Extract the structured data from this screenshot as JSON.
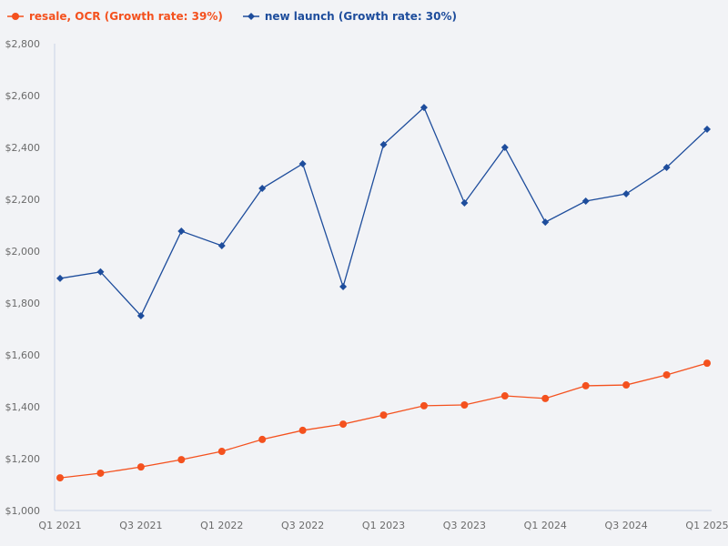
{
  "legend": {
    "series_0": "resale, OCR (Growth rate: 39%)",
    "series_1": "new launch (Growth rate: 30%)"
  },
  "colors": {
    "resale": "#f4511e",
    "new_launch": "#1e4d9c",
    "axis": "#c9d3e6",
    "tick_text": "#6b6b6b",
    "background": "#f2f3f6"
  },
  "chart_data": {
    "type": "line",
    "title": "",
    "xlabel": "",
    "ylabel": "",
    "ylim": [
      1000,
      2800
    ],
    "yticks": [
      "$1,000",
      "$1,200",
      "$1,400",
      "$1,600",
      "$1,800",
      "$2,000",
      "$2,200",
      "$2,400",
      "$2,600",
      "$2,800"
    ],
    "ytick_values": [
      1000,
      1200,
      1400,
      1600,
      1800,
      2000,
      2200,
      2400,
      2600,
      2800
    ],
    "x": [
      "Q1 2021",
      "Q2 2021",
      "Q3 2021",
      "Q4 2021",
      "Q1 2022",
      "Q2 2022",
      "Q3 2022",
      "Q4 2022",
      "Q1 2023",
      "Q2 2023",
      "Q3 2023",
      "Q4 2023",
      "Q1 2024",
      "Q2 2024",
      "Q3 2024",
      "Q4 2024",
      "Q1 2025"
    ],
    "xtick_labels": [
      "Q1 2021",
      "Q3 2021",
      "Q1 2022",
      "Q3 2022",
      "Q1 2023",
      "Q3 2023",
      "Q1 2024",
      "Q3 2024",
      "Q1 2025"
    ],
    "grid": false,
    "legend_position": "top-left",
    "series": [
      {
        "name": "resale, OCR (Growth rate: 39%)",
        "marker": "circle",
        "color": "#f4511e",
        "values": [
          1126,
          1144,
          1168,
          1196,
          1228,
          1274,
          1309,
          1333,
          1368,
          1404,
          1407,
          1442,
          1432,
          1481,
          1484,
          1523,
          1568
        ]
      },
      {
        "name": "new launch (Growth rate: 30%)",
        "marker": "diamond",
        "color": "#1e4d9c",
        "values": [
          1895,
          1920,
          1751,
          2077,
          2021,
          2242,
          2337,
          1863,
          2411,
          2554,
          2186,
          2400,
          2112,
          2193,
          2221,
          2323,
          2470
        ]
      }
    ]
  }
}
